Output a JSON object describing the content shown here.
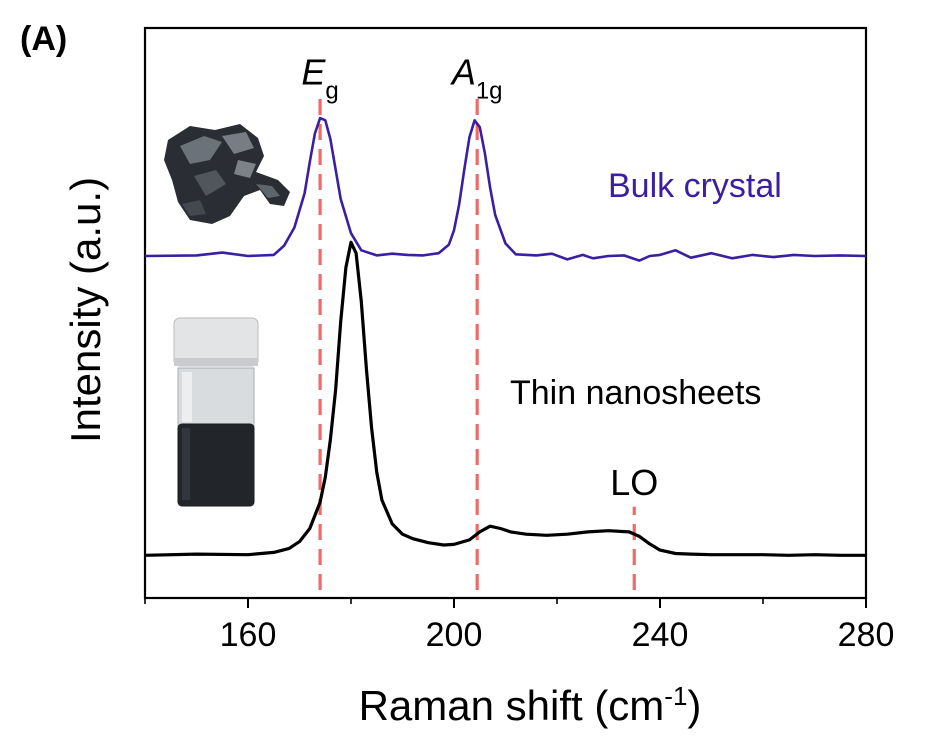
{
  "panel_label": "(A)",
  "chart_data": {
    "type": "line",
    "title": "",
    "xlabel": "Raman shift (cm",
    "xlabel_sup": "-1",
    "xlabel_close": ")",
    "ylabel": "Intensity (a.u.)",
    "xlim": [
      140,
      280
    ],
    "ylim": [
      0,
      1
    ],
    "xticks": [
      160,
      200,
      240,
      280
    ],
    "xtick_labels": [
      "160",
      "200",
      "240",
      "280"
    ],
    "grid": false,
    "series": [
      {
        "name": "Bulk crystal",
        "color": "#3b1fa3",
        "x": [
          140,
          150,
          155,
          160,
          165,
          167,
          169,
          171,
          172,
          173,
          174,
          175,
          176,
          177,
          178,
          180,
          182,
          185,
          188,
          191,
          194,
          197,
          199,
          200,
          201,
          202,
          203,
          204,
          205,
          206,
          207,
          208,
          210,
          212,
          216,
          219,
          222,
          225,
          227,
          230,
          233,
          236,
          238,
          240,
          243,
          246,
          250,
          254,
          258,
          262,
          266,
          270,
          275,
          280
        ],
        "y": [
          0.6,
          0.601,
          0.606,
          0.6,
          0.602,
          0.618,
          0.65,
          0.71,
          0.765,
          0.815,
          0.842,
          0.838,
          0.805,
          0.752,
          0.7,
          0.64,
          0.61,
          0.601,
          0.604,
          0.602,
          0.601,
          0.605,
          0.62,
          0.645,
          0.69,
          0.752,
          0.808,
          0.838,
          0.826,
          0.78,
          0.72,
          0.672,
          0.622,
          0.603,
          0.601,
          0.604,
          0.594,
          0.602,
          0.596,
          0.6,
          0.601,
          0.592,
          0.6,
          0.602,
          0.61,
          0.597,
          0.605,
          0.596,
          0.602,
          0.598,
          0.602,
          0.6,
          0.601,
          0.6
        ]
      },
      {
        "name": "Thin nanosheets",
        "color": "#000000",
        "x": [
          140,
          150,
          160,
          165,
          168,
          170,
          172,
          174,
          175,
          176,
          177,
          178,
          179,
          180,
          181,
          182,
          183,
          184,
          185,
          186,
          188,
          190,
          192,
          195,
          198,
          200,
          203,
          205,
          207,
          209,
          211,
          214,
          218,
          222,
          226,
          230,
          234,
          236,
          238,
          240,
          243,
          246,
          250,
          255,
          260,
          265,
          270,
          275,
          280
        ],
        "y": [
          0.075,
          0.077,
          0.076,
          0.08,
          0.087,
          0.099,
          0.122,
          0.168,
          0.212,
          0.278,
          0.365,
          0.485,
          0.58,
          0.624,
          0.605,
          0.52,
          0.4,
          0.298,
          0.22,
          0.172,
          0.13,
          0.112,
          0.104,
          0.097,
          0.093,
          0.094,
          0.102,
          0.116,
          0.126,
          0.122,
          0.116,
          0.112,
          0.11,
          0.112,
          0.116,
          0.118,
          0.116,
          0.108,
          0.095,
          0.084,
          0.078,
          0.077,
          0.076,
          0.076,
          0.076,
          0.075,
          0.076,
          0.075,
          0.075
        ]
      }
    ],
    "reference_lines": [
      {
        "x": 174,
        "label_main": "E",
        "label_sub": "g",
        "color": "#f06a6a",
        "y_from": 0.0,
        "y_to": 0.88
      },
      {
        "x": 204.5,
        "label_main": "A",
        "label_sub": "1g",
        "color": "#f06a6a",
        "y_from": 0.0,
        "y_to": 0.88
      },
      {
        "x": 235,
        "label_main": "LO",
        "label_sub": "",
        "color": "#f06a6a",
        "y_from": 0.0,
        "y_to": 0.16
      }
    ],
    "annotations": [
      {
        "text": "Bulk crystal",
        "color": "#3b1fa3"
      },
      {
        "text": "Thin nanosheets",
        "color": "#000000"
      }
    ]
  }
}
